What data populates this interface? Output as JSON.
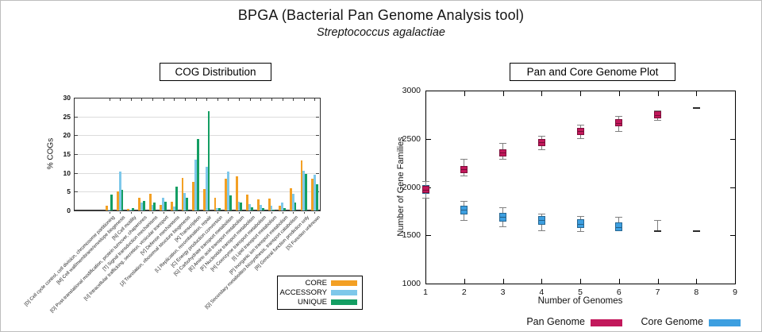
{
  "page": {
    "title": "BPGA (Bacterial Pan Genome Analysis tool)",
    "subtitle": "Streptococcus agalactiae"
  },
  "chart_data": [
    {
      "id": "cog-distribution",
      "type": "bar",
      "title": "COG Distribution",
      "xlabel": "",
      "ylabel": "% COGs",
      "ylim": [
        0,
        30
      ],
      "yticks": [
        0,
        5,
        10,
        15,
        20,
        25,
        30
      ],
      "grid": "horizontal",
      "legend_position": "bottom-right-box",
      "categories": [
        "[D] Cell cycle control, cell division, chromosome partitioning",
        "[M] Cell wall/membrane/envelope biogenesis",
        "[N] Cell motility",
        "[O] Post-translational modification, protein turnover, chaperones",
        "[T] Signal transduction mechanisms",
        "[U] Intracellular trafficking, secretion, vesicular transport",
        "[V] Defense mechanisms",
        "[J] Translation, ribosomal structure biogenesis",
        "[K] Transcription",
        "[L] Replication, recombination, repair",
        "[C] Energy production conversion",
        "[G] Carbohydrate transport metabolism",
        "[E] Amino acid transport metabolism",
        "[F] Nucleotide transport metabolism",
        "[H] Coenzyme transport metabolism",
        "[I] Lipid transport metabolism",
        "[P] Inorganic ion transport metabolism",
        "[Q] Secondary metabolites biosynthesis, transport catabolism",
        "[R] General function prediction only",
        "[S] Function unknown"
      ],
      "series": [
        {
          "name": "CORE",
          "color": "#F3A024",
          "values": [
            1.2,
            5.0,
            0.5,
            3.3,
            4.4,
            1.5,
            2.4,
            8.7,
            7.7,
            5.8,
            3.4,
            8.4,
            9.0,
            4.3,
            2.9,
            3.1,
            1.3,
            5.9,
            13.3,
            8.4
          ]
        },
        {
          "name": "ACCESSORY",
          "color": "#7EC8EA",
          "values": [
            0.3,
            10.4,
            0.3,
            2.2,
            1.5,
            3.3,
            1.1,
            4.7,
            13.5,
            11.7,
            0.6,
            10.3,
            2.3,
            1.6,
            1.4,
            1.3,
            2.2,
            4.5,
            10.6,
            9.5
          ]
        },
        {
          "name": "UNIQUE",
          "color": "#149E63",
          "values": [
            4.2,
            5.5,
            0.7,
            2.6,
            2.2,
            2.4,
            6.3,
            3.4,
            19.0,
            26.5,
            0.7,
            4.1,
            2.1,
            0.8,
            0.6,
            0.3,
            0.7,
            2.1,
            9.7,
            7.0
          ]
        }
      ]
    },
    {
      "id": "pan-core-genome",
      "type": "scatter",
      "title": "Pan and Core Genome Plot",
      "xlabel": "Number of Genomes",
      "ylabel": "Number of Gene Families",
      "xlim": [
        1,
        9
      ],
      "ylim": [
        1000,
        3000
      ],
      "xticks": [
        1,
        2,
        3,
        4,
        5,
        6,
        7,
        8,
        9
      ],
      "yticks": [
        1000,
        1500,
        2000,
        2500,
        3000
      ],
      "grid": "off",
      "legend_position": "bottom",
      "series": [
        {
          "name": "Core Genome",
          "color": "#3D9FE0",
          "x": [
            1,
            2,
            3,
            4,
            5,
            6,
            7,
            8
          ],
          "y": [
            1975,
            1765,
            1690,
            1655,
            1620,
            1585,
            1545,
            1540
          ],
          "err_low": [
            1890,
            1660,
            1595,
            1555,
            1545,
            1550,
            1545,
            null
          ],
          "err_high": [
            2065,
            1860,
            1790,
            1725,
            1700,
            1690,
            1660,
            null
          ],
          "markers": [
            "box",
            "box",
            "box",
            "box",
            "box",
            "box",
            "dash",
            "dash"
          ]
        },
        {
          "name": "Pan Genome",
          "color": "#C2185B",
          "x": [
            1,
            2,
            3,
            4,
            5,
            6,
            7,
            8
          ],
          "y": [
            1975,
            2185,
            2355,
            2465,
            2580,
            2665,
            2745,
            2815
          ],
          "err_low": [
            1890,
            2120,
            2290,
            2390,
            2505,
            2580,
            2695,
            null
          ],
          "err_high": [
            2065,
            2290,
            2455,
            2530,
            2645,
            2735,
            2795,
            null
          ],
          "markers": [
            "box",
            "box",
            "box",
            "box",
            "box",
            "box",
            "box",
            "dash"
          ]
        }
      ]
    }
  ]
}
